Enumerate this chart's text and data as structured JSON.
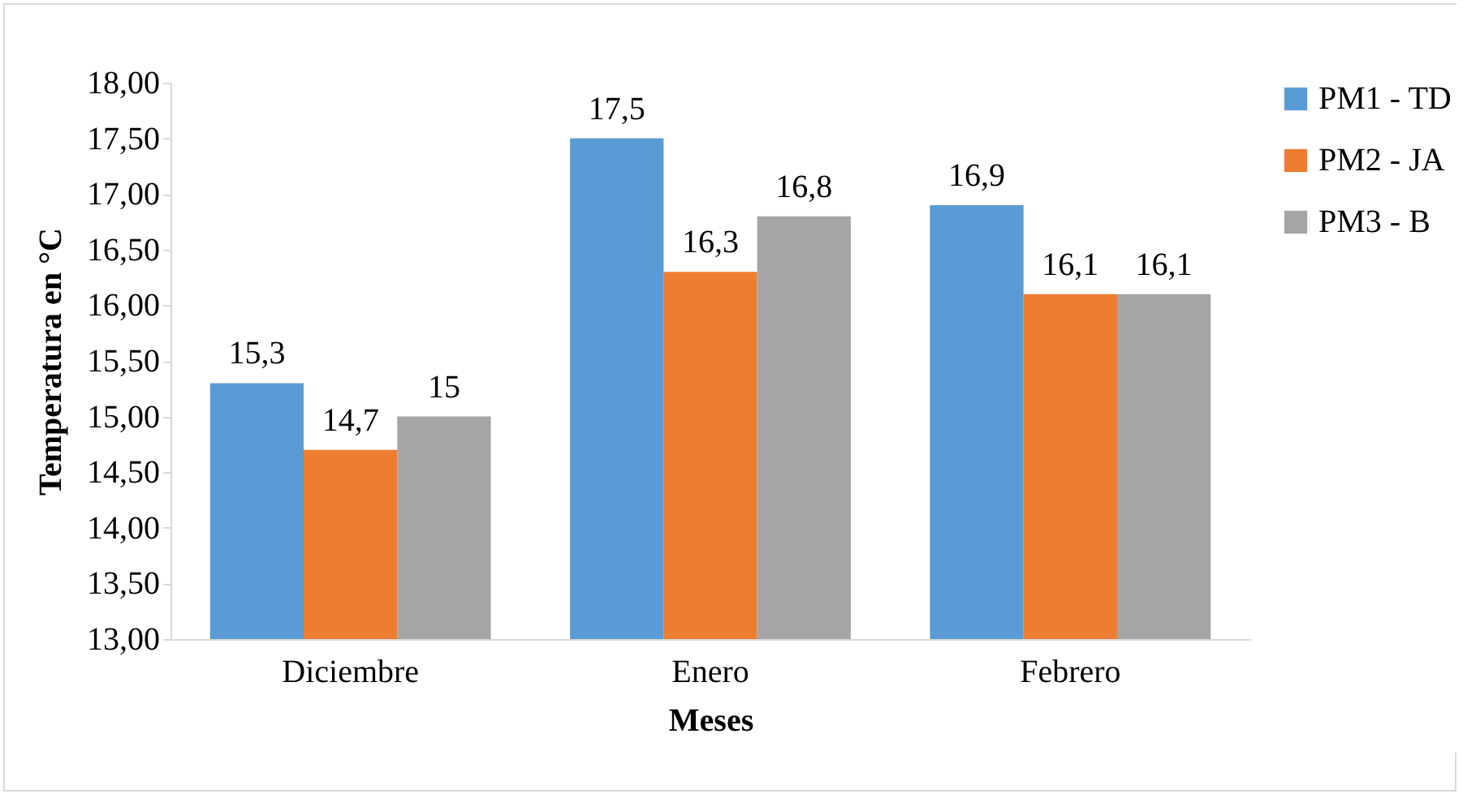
{
  "chart_data": {
    "type": "bar",
    "xlabel": "Meses",
    "ylabel": "Temperatura en °C",
    "categories": [
      "Diciembre",
      "Enero",
      "Febrero"
    ],
    "series": [
      {
        "name": "PM1 - TD",
        "color": "#5b9bd5",
        "values": [
          15.3,
          17.5,
          16.9
        ],
        "value_labels": [
          "15,3",
          "17,5",
          "16,9"
        ]
      },
      {
        "name": "PM2 - JA",
        "color": "#ed7d31",
        "values": [
          14.7,
          16.3,
          16.1
        ],
        "value_labels": [
          "14,7",
          "16,3",
          "16,1"
        ]
      },
      {
        "name": "PM3 - B",
        "color": "#a5a5a5",
        "values": [
          15,
          16.8,
          16.1
        ],
        "value_labels": [
          "15",
          "16,8",
          "16,1"
        ]
      }
    ],
    "ylim": [
      13,
      18
    ],
    "yticks": [
      {
        "value": 13,
        "label": "13,00"
      },
      {
        "value": 13.5,
        "label": "13,50"
      },
      {
        "value": 14,
        "label": "14,00"
      },
      {
        "value": 14.5,
        "label": "14,50"
      },
      {
        "value": 15,
        "label": "15,00"
      },
      {
        "value": 15.5,
        "label": "15,50"
      },
      {
        "value": 16,
        "label": "16,00"
      },
      {
        "value": 16.5,
        "label": "16,50"
      },
      {
        "value": 17,
        "label": "17,00"
      },
      {
        "value": 17.5,
        "label": "17,50"
      },
      {
        "value": 18,
        "label": "18,00"
      }
    ],
    "grid": false,
    "legend": "right"
  }
}
